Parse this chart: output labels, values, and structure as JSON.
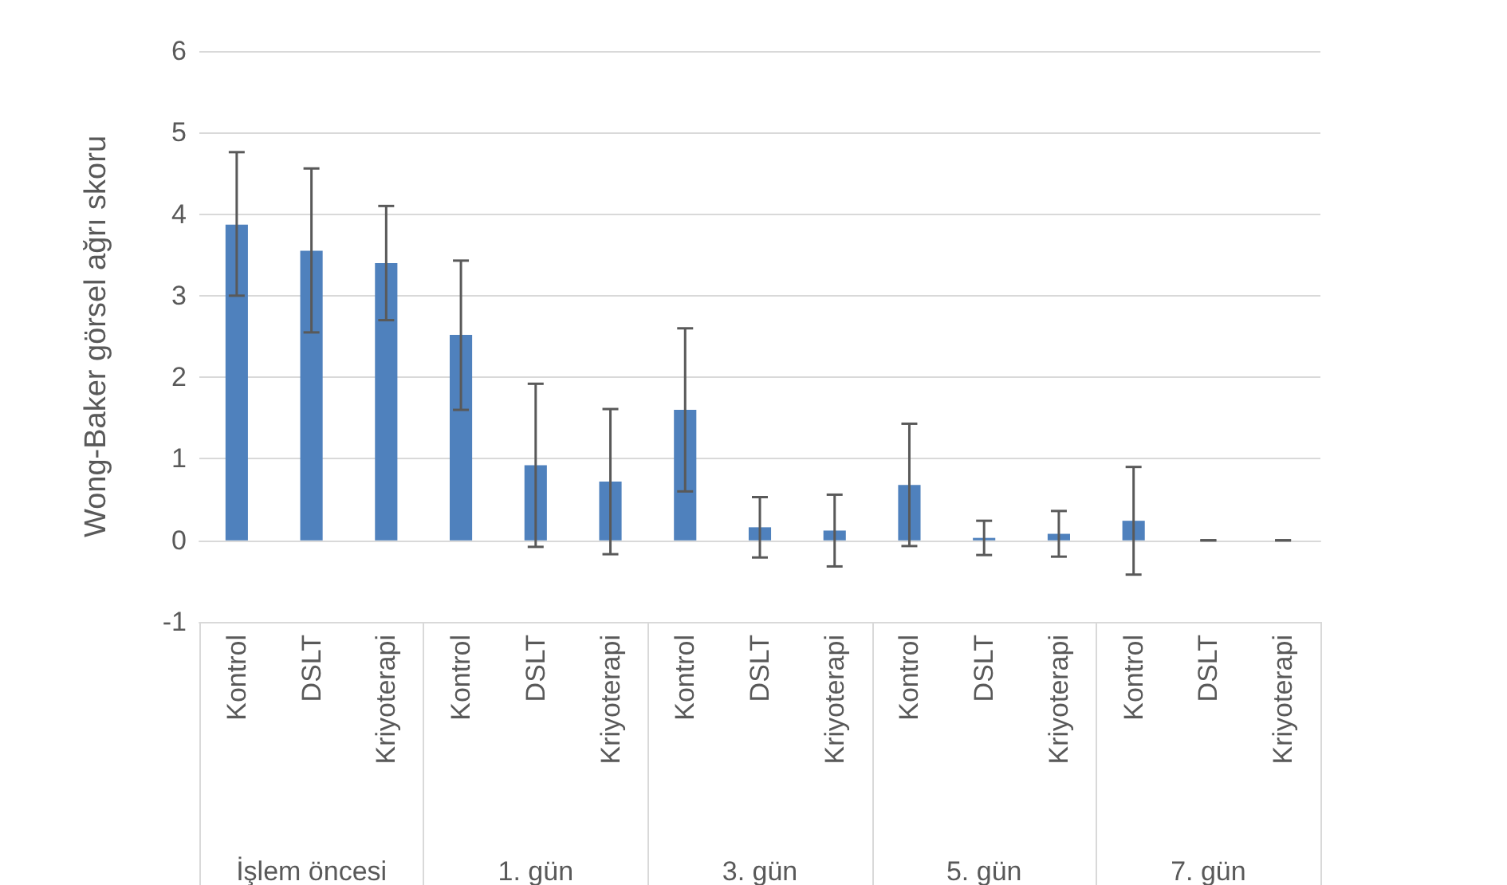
{
  "chart_data": {
    "type": "bar",
    "ylabel": "Wong-Baker görsel ağrı skoru",
    "categories": [
      "Kontrol",
      "DSLT",
      "Kriyoterapi",
      "Kontrol",
      "DSLT",
      "Kriyoterapi",
      "Kontrol",
      "DSLT",
      "Kriyoterapi",
      "Kontrol",
      "DSLT",
      "Kriyoterapi",
      "Kontrol",
      "DSLT",
      "Kriyoterapi"
    ],
    "annotations": [
      "İşlem öncesi",
      "1. gün",
      "3. gün",
      "5. gün",
      "7. gün"
    ],
    "series": [
      {
        "color": "#4f81bd",
        "values": [
          3.87,
          3.55,
          3.4,
          2.52,
          0.92,
          0.72,
          1.6,
          0.16,
          0.12,
          0.68,
          0.03,
          0.08,
          0.24,
          0,
          0
        ],
        "errors": [
          [
            3.0,
            4.76
          ],
          [
            2.55,
            4.56
          ],
          [
            2.7,
            4.1
          ],
          [
            1.6,
            3.43
          ],
          [
            -0.08,
            1.92
          ],
          [
            -0.17,
            1.61
          ],
          [
            0.6,
            2.6
          ],
          [
            -0.21,
            0.53
          ],
          [
            -0.32,
            0.56
          ],
          [
            -0.07,
            1.43
          ],
          [
            -0.18,
            0.24
          ],
          [
            -0.2,
            0.36
          ],
          [
            -0.42,
            0.9
          ],
          [
            0,
            0
          ],
          [
            0,
            0
          ]
        ]
      }
    ],
    "ylim": [
      -1,
      6
    ],
    "yticks": [
      -1,
      0,
      1,
      2,
      3,
      4,
      5,
      6
    ],
    "grid": "y"
  }
}
